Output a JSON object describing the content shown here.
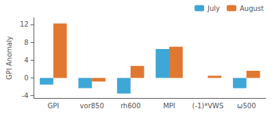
{
  "chart_data": {
    "type": "bar",
    "categories": [
      "GPI",
      "vor850",
      "rh600",
      "MPI",
      "(-1)*VWS",
      "ω500"
    ],
    "series": [
      {
        "name": "July",
        "color": "#3fa7d6",
        "values": [
          -1.5,
          -2.3,
          -3.5,
          6.5,
          0.0,
          -2.3
        ]
      },
      {
        "name": "August",
        "color": "#e07830",
        "values": [
          12.2,
          -0.8,
          2.7,
          7.0,
          0.5,
          1.6
        ]
      }
    ],
    "ylabel": "GPI Anomaly",
    "ylim": [
      -4.5,
      13.5
    ],
    "yticks": [
      -4,
      0,
      4,
      8,
      12
    ],
    "grid": false,
    "legend": "upper right"
  }
}
